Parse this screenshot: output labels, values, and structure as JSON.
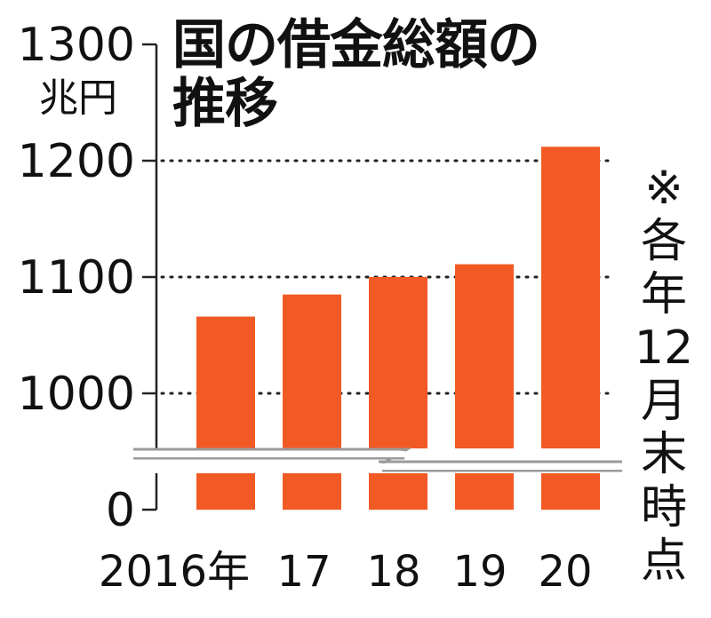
{
  "chart_data": {
    "type": "bar",
    "title": "国の借金総額の推移",
    "unit": "兆円",
    "note": [
      "※",
      "各",
      "年",
      "12",
      "月",
      "末",
      "時",
      "点"
    ],
    "categories": [
      "2016年",
      "17",
      "18",
      "19",
      "20"
    ],
    "values": [
      1066,
      1085,
      1100,
      1111,
      1212
    ],
    "ylim": [
      0,
      1300
    ],
    "yticks": [
      0,
      1000,
      1100,
      1200,
      1300
    ],
    "axis_break": true,
    "grid": "dotted",
    "bar_color": "#f15a24"
  }
}
